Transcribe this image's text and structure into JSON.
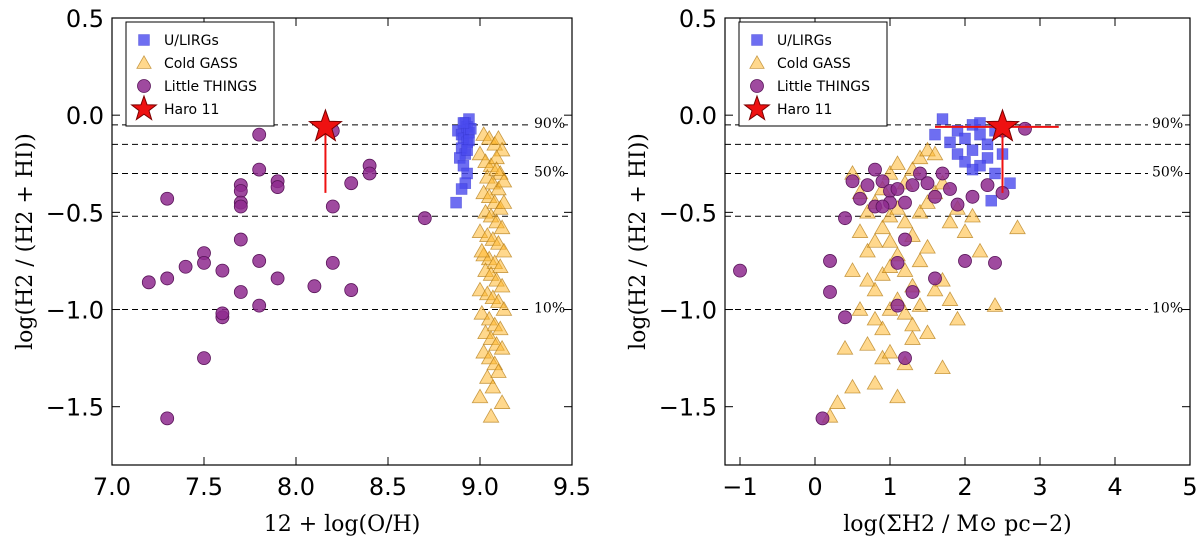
{
  "chart_data": [
    {
      "type": "scatter",
      "xlabel": "12 + log(O/H)",
      "ylabel": "log(H2 / (H2 + HI))",
      "xlim": [
        7.0,
        9.5
      ],
      "ylim": [
        -1.8,
        0.5
      ],
      "xticks": [
        "7.0",
        "7.5",
        "8.0",
        "8.5",
        "9.0",
        "9.5"
      ],
      "yticks": [
        "0.5",
        "0.0",
        "−0.5",
        "−1.0",
        "−1.5"
      ],
      "legend_position": "top-left",
      "hlines": [
        {
          "y": -0.05,
          "label": "90%"
        },
        {
          "y": -0.15,
          "label": ""
        },
        {
          "y": -0.3,
          "label": "50%"
        },
        {
          "y": -0.52,
          "label": ""
        },
        {
          "y": -1.0,
          "label": "10%"
        }
      ],
      "series": [
        {
          "name": "U/LIRGs",
          "marker": "square",
          "color": "#4a4aee",
          "points": [
            [
              8.88,
              -0.08
            ],
            [
              8.9,
              -0.1
            ],
            [
              8.92,
              -0.04
            ],
            [
              8.93,
              -0.06
            ],
            [
              8.94,
              -0.02
            ],
            [
              8.91,
              -0.12
            ],
            [
              8.93,
              -0.14
            ],
            [
              8.9,
              -0.17
            ],
            [
              8.92,
              -0.2
            ],
            [
              8.94,
              -0.09
            ],
            [
              8.89,
              -0.22
            ],
            [
              8.91,
              -0.26
            ],
            [
              8.93,
              -0.3
            ],
            [
              8.92,
              -0.35
            ],
            [
              8.9,
              -0.38
            ],
            [
              8.87,
              -0.45
            ],
            [
              8.94,
              -0.13
            ],
            [
              8.95,
              -0.07
            ],
            [
              8.91,
              -0.04
            ],
            [
              8.93,
              -0.18
            ]
          ]
        },
        {
          "name": "Cold GASS",
          "marker": "triangle",
          "color": "#ffb830",
          "points": [
            [
              9.02,
              -0.1
            ],
            [
              9.05,
              -0.12
            ],
            [
              9.08,
              -0.15
            ],
            [
              9.1,
              -0.12
            ],
            [
              9.12,
              -0.18
            ],
            [
              9.0,
              -0.2
            ],
            [
              9.03,
              -0.24
            ],
            [
              9.06,
              -0.26
            ],
            [
              9.09,
              -0.22
            ],
            [
              9.11,
              -0.3
            ],
            [
              9.04,
              -0.32
            ],
            [
              9.07,
              -0.35
            ],
            [
              9.1,
              -0.38
            ],
            [
              9.13,
              -0.34
            ],
            [
              9.02,
              -0.4
            ],
            [
              9.05,
              -0.42
            ],
            [
              9.08,
              -0.45
            ],
            [
              9.11,
              -0.48
            ],
            [
              9.03,
              -0.5
            ],
            [
              9.06,
              -0.52
            ],
            [
              9.09,
              -0.55
            ],
            [
              9.12,
              -0.58
            ],
            [
              9.0,
              -0.6
            ],
            [
              9.04,
              -0.62
            ],
            [
              9.07,
              -0.64
            ],
            [
              9.1,
              -0.66
            ],
            [
              9.13,
              -0.7
            ],
            [
              9.02,
              -0.72
            ],
            [
              9.05,
              -0.74
            ],
            [
              9.08,
              -0.76
            ],
            [
              9.11,
              -0.78
            ],
            [
              9.03,
              -0.8
            ],
            [
              9.06,
              -0.82
            ],
            [
              9.09,
              -0.85
            ],
            [
              9.12,
              -0.88
            ],
            [
              9.0,
              -0.9
            ],
            [
              9.04,
              -0.92
            ],
            [
              9.07,
              -0.94
            ],
            [
              9.1,
              -0.96
            ],
            [
              9.13,
              -1.0
            ],
            [
              9.01,
              -1.02
            ],
            [
              9.05,
              -1.05
            ],
            [
              9.08,
              -1.08
            ],
            [
              9.11,
              -1.1
            ],
            [
              9.03,
              -1.12
            ],
            [
              9.06,
              -1.15
            ],
            [
              9.09,
              -1.18
            ],
            [
              9.12,
              -1.2
            ],
            [
              9.02,
              -1.22
            ],
            [
              9.05,
              -1.25
            ],
            [
              9.08,
              -1.28
            ],
            [
              9.1,
              -1.32
            ],
            [
              9.04,
              -1.35
            ],
            [
              9.07,
              -1.4
            ],
            [
              9.0,
              -1.45
            ],
            [
              9.12,
              -1.48
            ],
            [
              9.06,
              -1.55
            ],
            [
              9.09,
              -0.28
            ],
            [
              9.01,
              -0.7
            ],
            [
              9.13,
              -0.45
            ]
          ]
        },
        {
          "name": "Little THINGS",
          "marker": "circle",
          "color": "#8e2a8e",
          "points": [
            [
              7.2,
              -0.86
            ],
            [
              7.3,
              -1.56
            ],
            [
              7.3,
              -0.43
            ],
            [
              7.3,
              -0.84
            ],
            [
              7.4,
              -0.78
            ],
            [
              7.5,
              -0.71
            ],
            [
              7.5,
              -0.76
            ],
            [
              7.5,
              -1.25
            ],
            [
              7.6,
              -0.8
            ],
            [
              7.6,
              -1.04
            ],
            [
              7.6,
              -1.02
            ],
            [
              7.7,
              -0.36
            ],
            [
              7.7,
              -0.39
            ],
            [
              7.7,
              -0.45
            ],
            [
              7.7,
              -0.47
            ],
            [
              7.7,
              -0.64
            ],
            [
              7.7,
              -0.91
            ],
            [
              7.8,
              -0.1
            ],
            [
              7.8,
              -0.28
            ],
            [
              7.8,
              -0.75
            ],
            [
              7.8,
              -0.98
            ],
            [
              7.9,
              -0.34
            ],
            [
              7.9,
              -0.37
            ],
            [
              7.9,
              -0.84
            ],
            [
              8.1,
              -0.88
            ],
            [
              8.2,
              -0.47
            ],
            [
              8.2,
              -0.76
            ],
            [
              8.3,
              -0.35
            ],
            [
              8.3,
              -0.9
            ],
            [
              8.4,
              -0.26
            ],
            [
              8.4,
              -0.3
            ],
            [
              8.7,
              -0.53
            ],
            [
              8.2,
              -0.08
            ]
          ]
        },
        {
          "name": "Haro 11",
          "marker": "star",
          "color": "#ee1111",
          "points": [
            [
              8.16,
              -0.06
            ]
          ],
          "error_down": 0.34
        }
      ]
    },
    {
      "type": "scatter",
      "xlabel": "log(ΣH2 / M⊙ pc−2)",
      "ylabel": "log(H2 / (H2 + HI))",
      "xlim": [
        -1.2,
        5.0
      ],
      "ylim": [
        -1.8,
        0.5
      ],
      "xticks": [
        "−1",
        "0",
        "1",
        "2",
        "3",
        "4",
        "5"
      ],
      "yticks": [
        "0.5",
        "0.0",
        "−0.5",
        "−1.0",
        "−1.5"
      ],
      "legend_position": "top-left",
      "hlines": [
        {
          "y": -0.05,
          "label": "90%"
        },
        {
          "y": -0.15,
          "label": ""
        },
        {
          "y": -0.3,
          "label": "50%"
        },
        {
          "y": -0.52,
          "label": ""
        },
        {
          "y": -1.0,
          "label": "10%"
        }
      ],
      "series": [
        {
          "name": "U/LIRGs",
          "marker": "square",
          "color": "#4a4aee",
          "points": [
            [
              1.7,
              -0.02
            ],
            [
              1.9,
              -0.08
            ],
            [
              2.0,
              -0.12
            ],
            [
              2.1,
              -0.05
            ],
            [
              2.2,
              -0.1
            ],
            [
              2.3,
              -0.15
            ],
            [
              2.4,
              -0.08
            ],
            [
              2.1,
              -0.18
            ],
            [
              2.3,
              -0.22
            ],
            [
              2.5,
              -0.2
            ],
            [
              1.8,
              -0.14
            ],
            [
              1.6,
              -0.1
            ],
            [
              2.2,
              -0.26
            ],
            [
              2.4,
              -0.3
            ],
            [
              2.1,
              -0.28
            ],
            [
              2.6,
              -0.35
            ],
            [
              2.35,
              -0.44
            ],
            [
              1.9,
              -0.2
            ],
            [
              2.0,
              -0.24
            ],
            [
              2.2,
              -0.04
            ]
          ]
        },
        {
          "name": "Cold GASS",
          "marker": "triangle",
          "color": "#ffb830",
          "points": [
            [
              0.5,
              -0.3
            ],
            [
              0.6,
              -0.4
            ],
            [
              0.7,
              -0.5
            ],
            [
              0.8,
              -0.45
            ],
            [
              0.9,
              -0.38
            ],
            [
              1.0,
              -0.3
            ],
            [
              1.1,
              -0.25
            ],
            [
              1.2,
              -0.35
            ],
            [
              1.3,
              -0.28
            ],
            [
              1.4,
              -0.22
            ],
            [
              1.5,
              -0.18
            ],
            [
              1.6,
              -0.2
            ],
            [
              0.6,
              -0.6
            ],
            [
              0.7,
              -0.7
            ],
            [
              0.8,
              -0.65
            ],
            [
              0.9,
              -0.58
            ],
            [
              1.0,
              -0.52
            ],
            [
              1.1,
              -0.48
            ],
            [
              1.2,
              -0.55
            ],
            [
              1.3,
              -0.62
            ],
            [
              1.4,
              -0.5
            ],
            [
              1.5,
              -0.45
            ],
            [
              1.6,
              -0.4
            ],
            [
              1.7,
              -0.35
            ],
            [
              0.5,
              -0.8
            ],
            [
              0.7,
              -0.85
            ],
            [
              0.8,
              -0.9
            ],
            [
              0.9,
              -0.82
            ],
            [
              1.0,
              -0.78
            ],
            [
              1.1,
              -0.72
            ],
            [
              1.2,
              -0.8
            ],
            [
              1.3,
              -0.88
            ],
            [
              1.4,
              -0.75
            ],
            [
              1.5,
              -0.68
            ],
            [
              1.8,
              -0.55
            ],
            [
              1.9,
              -0.48
            ],
            [
              2.0,
              -0.6
            ],
            [
              2.1,
              -0.52
            ],
            [
              0.6,
              -1.0
            ],
            [
              0.8,
              -1.05
            ],
            [
              0.9,
              -1.1
            ],
            [
              1.0,
              -1.0
            ],
            [
              1.1,
              -0.95
            ],
            [
              1.2,
              -1.02
            ],
            [
              1.3,
              -1.08
            ],
            [
              1.4,
              -0.98
            ],
            [
              1.6,
              -0.9
            ],
            [
              1.7,
              -0.85
            ],
            [
              1.8,
              -0.95
            ],
            [
              0.4,
              -1.2
            ],
            [
              0.7,
              -1.18
            ],
            [
              0.9,
              -1.25
            ],
            [
              1.0,
              -1.22
            ],
            [
              1.2,
              -1.28
            ],
            [
              1.3,
              -1.15
            ],
            [
              1.5,
              -1.12
            ],
            [
              0.5,
              -1.4
            ],
            [
              0.8,
              -1.38
            ],
            [
              1.1,
              -1.45
            ],
            [
              1.7,
              -1.3
            ],
            [
              0.3,
              -1.48
            ],
            [
              0.2,
              -1.55
            ],
            [
              2.4,
              -0.98
            ],
            [
              2.7,
              -0.58
            ],
            [
              1.9,
              -1.05
            ],
            [
              2.2,
              -0.7
            ],
            [
              1.0,
              -0.65
            ]
          ]
        },
        {
          "name": "Little THINGS",
          "marker": "circle",
          "color": "#8e2a8e",
          "points": [
            [
              -1.0,
              -0.8
            ],
            [
              0.1,
              -1.56
            ],
            [
              0.2,
              -0.75
            ],
            [
              0.2,
              -0.91
            ],
            [
              0.4,
              -1.04
            ],
            [
              0.4,
              -0.53
            ],
            [
              0.5,
              -0.34
            ],
            [
              0.6,
              -0.43
            ],
            [
              0.7,
              -0.36
            ],
            [
              0.8,
              -0.47
            ],
            [
              0.9,
              -0.34
            ],
            [
              1.0,
              -0.39
            ],
            [
              1.0,
              -0.45
            ],
            [
              1.1,
              -0.38
            ],
            [
              1.2,
              -0.45
            ],
            [
              1.2,
              -0.64
            ],
            [
              1.3,
              -0.36
            ],
            [
              1.4,
              -0.3
            ],
            [
              1.5,
              -0.35
            ],
            [
              1.6,
              -0.42
            ],
            [
              1.6,
              -0.84
            ],
            [
              1.7,
              -0.3
            ],
            [
              1.8,
              -0.38
            ],
            [
              1.9,
              -0.46
            ],
            [
              2.0,
              -0.75
            ],
            [
              2.1,
              -0.42
            ],
            [
              2.3,
              -0.36
            ],
            [
              2.4,
              -0.76
            ],
            [
              2.5,
              -0.4
            ],
            [
              1.1,
              -0.76
            ],
            [
              1.2,
              -1.25
            ],
            [
              1.1,
              -0.98
            ],
            [
              0.8,
              -0.28
            ],
            [
              1.3,
              -0.91
            ],
            [
              2.8,
              -0.07
            ],
            [
              2.5,
              -0.08
            ],
            [
              0.9,
              -0.47
            ]
          ]
        },
        {
          "name": "Haro 11",
          "marker": "star",
          "color": "#ee1111",
          "points": [
            [
              2.5,
              -0.06
            ]
          ],
          "error_down": 0.34,
          "error_x": [
            1.6,
            3.25
          ]
        }
      ]
    }
  ]
}
